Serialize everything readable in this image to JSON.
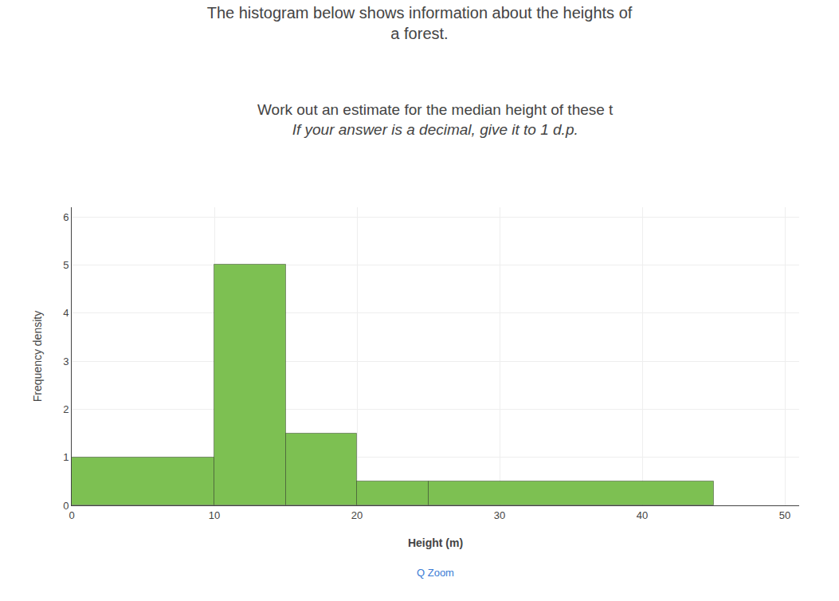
{
  "chart_data": {
    "type": "histogram",
    "title": [
      "The histogram below shows information about the heights of",
      "a forest."
    ],
    "subtitle": [
      "Work out an estimate for the median height of these t",
      "If your answer is a decimal, give it to 1 d.p."
    ],
    "x_label": "Height (m)",
    "y_label": "Frequency density",
    "bins": [
      0,
      10,
      15,
      20,
      25,
      45
    ],
    "values": [
      1,
      5,
      1.5,
      0.5,
      0.5
    ],
    "color": "#7DC052",
    "xlim": [
      0,
      51
    ],
    "ylim": [
      0,
      6.2
    ],
    "xticks": [
      0,
      10,
      20,
      30,
      40,
      50
    ],
    "yticks": [
      0,
      1,
      2,
      3,
      4,
      5,
      6
    ],
    "grid": true,
    "annotations": [
      "Q Zoom"
    ]
  }
}
